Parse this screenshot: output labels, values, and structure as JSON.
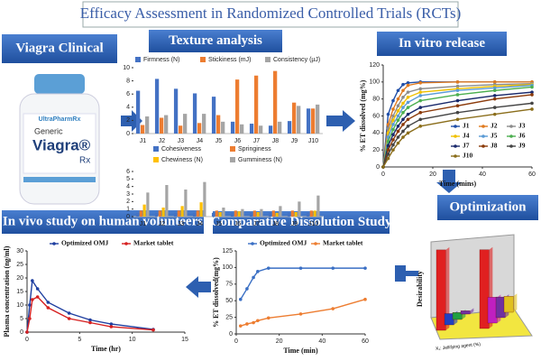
{
  "title": "Efficacy Assessment in Randomized Controlled Trials (RCTs)",
  "panels": {
    "viagra": "Viagra Clinical",
    "texture": "Texture analysis",
    "invitro": "In vitro release",
    "optimization": "Optimization",
    "comparative": "Comparative Dissolution Study",
    "invivo": "In vivo study on human volunteers"
  },
  "product": {
    "brand": "UltraPharmRx",
    "generic": "Generic",
    "name": "Viagra®",
    "rx": "Rx"
  },
  "chart_data": [
    {
      "type": "bar",
      "categories": [
        "J1",
        "J2",
        "J3",
        "J4",
        "J5",
        "J6",
        "J7",
        "J8",
        "J9",
        "J10"
      ],
      "series": [
        {
          "name": "Firmness (N)",
          "color": "#4472c4",
          "values": [
            6.5,
            8.3,
            6.8,
            6.1,
            5.6,
            1.8,
            1.5,
            1.2,
            1.9,
            3.8
          ]
        },
        {
          "name": "Stickiness (mJ)",
          "color": "#ed7d31",
          "values": [
            1.3,
            2.4,
            1.2,
            1.6,
            2.8,
            8.2,
            8.8,
            9.5,
            4.7,
            3.8
          ]
        },
        {
          "name": "Consistency (µJ)",
          "color": "#a5a5a5",
          "values": [
            2.6,
            2.8,
            3.0,
            3.0,
            1.8,
            1.4,
            1.2,
            1.8,
            4.2,
            4.4
          ]
        }
      ],
      "ylim": [
        0,
        10
      ],
      "yticks": [
        0,
        2,
        4,
        6,
        8,
        10
      ]
    },
    {
      "type": "bar",
      "categories": [
        "J1",
        "J2",
        "J3",
        "J4",
        "J5",
        "J6",
        "J7",
        "J8",
        "J9",
        "J10"
      ],
      "series": [
        {
          "name": "Cohesiveness",
          "color": "#4472c4",
          "values": [
            0.5,
            0.5,
            0.5,
            0.5,
            0.5,
            0.5,
            0.5,
            0.5,
            0.5,
            0.5
          ]
        },
        {
          "name": "Springiness",
          "color": "#ed7d31",
          "values": [
            0.8,
            0.8,
            0.8,
            0.8,
            0.8,
            0.8,
            0.8,
            0.8,
            0.8,
            0.8
          ]
        },
        {
          "name": "Chewiness (N)",
          "color": "#ffc000",
          "values": [
            1.6,
            1.2,
            1.4,
            1.9,
            0.6,
            0.7,
            0.6,
            0.5,
            0.6,
            0.8
          ]
        },
        {
          "name": "Gumminess (N)",
          "color": "#a5a5a5",
          "values": [
            3.2,
            4.2,
            3.6,
            4.6,
            1.2,
            1.0,
            1.0,
            1.4,
            2.0,
            2.8
          ]
        }
      ],
      "ylim": [
        0,
        6
      ],
      "yticks": [
        0,
        1,
        2,
        3,
        4,
        5,
        6
      ]
    },
    {
      "type": "line",
      "x": [
        0,
        2,
        4,
        6,
        8,
        10,
        15,
        30,
        45,
        60
      ],
      "series": [
        {
          "name": "J1",
          "color": "#1f4ea8",
          "values": [
            0,
            62,
            78,
            90,
            97,
            99,
            100,
            100,
            100,
            100
          ]
        },
        {
          "name": "J2",
          "color": "#e07b20",
          "values": [
            0,
            50,
            68,
            80,
            90,
            96,
            99,
            100,
            100,
            100
          ]
        },
        {
          "name": "J3",
          "color": "#8c8c8c",
          "values": [
            0,
            45,
            60,
            72,
            82,
            88,
            92,
            95,
            97,
            98
          ]
        },
        {
          "name": "J4",
          "color": "#f0c000",
          "values": [
            0,
            40,
            55,
            66,
            75,
            82,
            88,
            92,
            95,
            97
          ]
        },
        {
          "name": "J5",
          "color": "#5b9bd5",
          "values": [
            0,
            35,
            50,
            60,
            70,
            76,
            84,
            90,
            93,
            96
          ]
        },
        {
          "name": "J6",
          "color": "#4caf50",
          "values": [
            0,
            30,
            44,
            55,
            64,
            70,
            78,
            85,
            90,
            94
          ]
        },
        {
          "name": "J7",
          "color": "#1a2a6c",
          "values": [
            0,
            25,
            38,
            48,
            56,
            62,
            70,
            78,
            84,
            88
          ]
        },
        {
          "name": "J8",
          "color": "#8b3a0a",
          "values": [
            0,
            20,
            32,
            42,
            50,
            56,
            64,
            72,
            80,
            85
          ]
        },
        {
          "name": "J9",
          "color": "#444444",
          "values": [
            0,
            15,
            26,
            35,
            42,
            48,
            56,
            64,
            70,
            75
          ]
        },
        {
          "name": "J10",
          "color": "#8a6d1a",
          "values": [
            0,
            10,
            20,
            28,
            35,
            40,
            48,
            56,
            62,
            68
          ]
        }
      ],
      "xlim": [
        0,
        60
      ],
      "xticks": [
        0,
        20,
        40,
        60
      ],
      "ylim": [
        0,
        120
      ],
      "yticks": [
        0,
        20,
        40,
        60,
        80,
        100,
        120
      ],
      "x_label": "Time (mins)",
      "y_label": "% ET dissolved (mg%)"
    },
    {
      "type": "bar3d",
      "categories": [
        null,
        null,
        null,
        null,
        null,
        null,
        null,
        null
      ],
      "values": [
        1.0,
        0.15,
        0.1,
        0.05,
        1.0,
        0.35,
        0.3,
        0.25
      ],
      "colors": [
        "#e02020",
        "#2040c0",
        "#20a040",
        "#7030a0",
        "#e02020",
        "#c020c0",
        "#7030a0",
        "#e0c020"
      ],
      "ylim": [
        0,
        1.1
      ],
      "y_label": "Desirability",
      "x_label": "X₁: Jellifying agent (%)"
    },
    {
      "type": "line",
      "x": [
        2,
        5,
        8,
        10,
        15,
        30,
        45,
        60
      ],
      "series": [
        {
          "name": "Optimized OMJ",
          "color": "#3a6fc4",
          "values": [
            52,
            68,
            85,
            94,
            99,
            99,
            99,
            99
          ]
        },
        {
          "name": "Market tablet",
          "color": "#ed7d31",
          "values": [
            12,
            15,
            17,
            20,
            24,
            30,
            38,
            52
          ]
        }
      ],
      "xlim": [
        0,
        60
      ],
      "xticks": [
        0,
        20,
        40,
        60
      ],
      "ylim": [
        0,
        125
      ],
      "yticks": [
        0,
        25,
        50,
        75,
        100,
        125
      ],
      "x_label": "Time (min)",
      "y_label": "% ET dissolved(mg%)"
    },
    {
      "type": "line",
      "x": [
        0,
        0.25,
        0.5,
        1,
        2,
        4,
        6,
        8,
        12
      ],
      "series": [
        {
          "name": "Optimized OMJ",
          "color": "#1f3fa0",
          "values": [
            0,
            10,
            19,
            16,
            11,
            7,
            4.5,
            3,
            1
          ]
        },
        {
          "name": "Market tablet",
          "color": "#d62020",
          "values": [
            0,
            5,
            12,
            13,
            9,
            5,
            3.5,
            2,
            0.8
          ]
        }
      ],
      "xlim": [
        0,
        15
      ],
      "xticks": [
        0,
        5,
        10,
        15
      ],
      "ylim": [
        0,
        30
      ],
      "yticks": [
        0,
        5,
        10,
        15,
        20,
        25,
        30
      ],
      "x_label": "Time (hr)",
      "y_label": "Plasma concentration (ng/ml)"
    }
  ]
}
